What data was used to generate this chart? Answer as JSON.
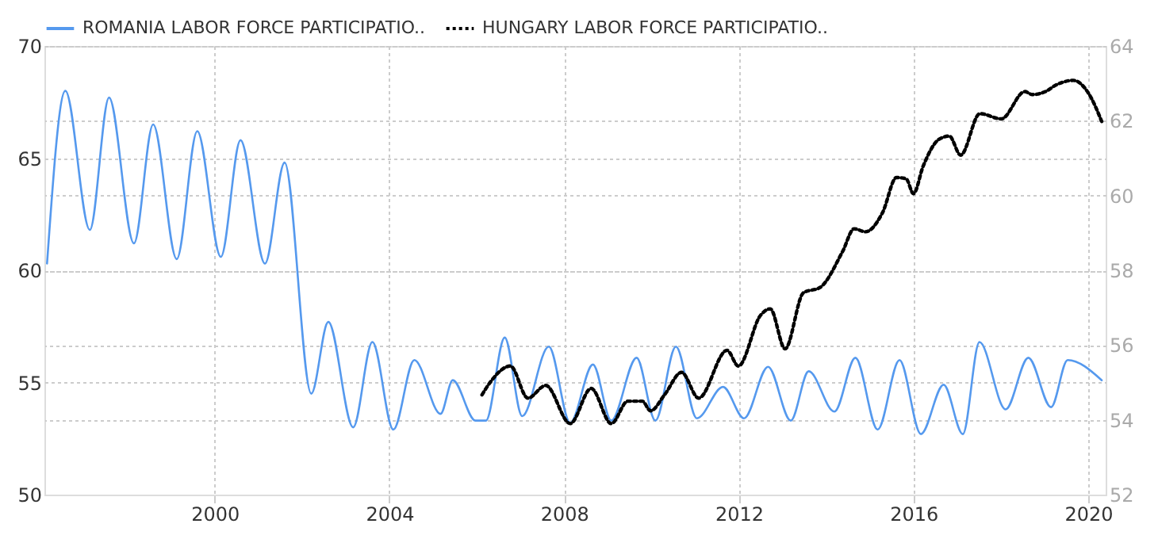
{
  "chart_data": {
    "type": "line",
    "legend": "top left",
    "grid": true,
    "xlim": [
      1996.1,
      2020.4
    ],
    "xticks": [
      2000,
      2004,
      2008,
      2012,
      2016,
      2020
    ],
    "ylim": [
      50,
      70
    ],
    "yticks": [
      50,
      55,
      60,
      65,
      70
    ],
    "y2lim": [
      52,
      64
    ],
    "y2ticks": [
      52,
      54,
      56,
      58,
      60,
      62,
      64
    ],
    "series": [
      {
        "name": "ROMANIA LABOR FORCE PARTICIPATIO..",
        "color": "#5599ee",
        "line_style": "solid",
        "x": [
          1996.16,
          1996.58,
          1997.14,
          1997.58,
          1998.15,
          1998.59,
          1999.13,
          1999.6,
          2000.14,
          2000.59,
          2001.15,
          2001.6,
          2002.21,
          2002.6,
          2003.17,
          2003.61,
          2004.09,
          2004.57,
          2005.17,
          2005.45,
          2005.97,
          2006.21,
          2006.64,
          2007.04,
          2007.65,
          2008.14,
          2008.66,
          2009.08,
          2009.66,
          2010.09,
          2010.56,
          2011.04,
          2011.64,
          2012.12,
          2012.67,
          2013.19,
          2013.6,
          2014.19,
          2014.67,
          2015.18,
          2015.68,
          2016.17,
          2016.69,
          2017.13,
          2017.51,
          2018.11,
          2018.63,
          2019.15,
          2019.53,
          2020.31
        ],
        "values": [
          60.3,
          68.0,
          61.8,
          67.7,
          61.2,
          66.5,
          60.5,
          66.2,
          60.6,
          65.8,
          60.3,
          64.8,
          54.5,
          57.7,
          53.0,
          56.8,
          52.9,
          56.0,
          53.6,
          55.1,
          53.3,
          53.3,
          57.0,
          53.5,
          56.6,
          53.2,
          55.8,
          53.3,
          56.1,
          53.3,
          56.6,
          53.4,
          54.8,
          53.4,
          55.7,
          53.3,
          55.5,
          53.7,
          56.1,
          52.9,
          56.0,
          52.7,
          54.9,
          52.7,
          56.8,
          53.8,
          56.1,
          53.9,
          56.0,
          55.1
        ]
      },
      {
        "name": "HUNGARY LABOR FORCE PARTICIPATIO..",
        "color": "#000000",
        "line_style": "dotted",
        "axis": "y2",
        "x": [
          2006.12,
          2006.33,
          2006.77,
          2007.17,
          2007.58,
          2008.14,
          2008.62,
          2009.08,
          2009.46,
          2009.79,
          2009.98,
          2010.3,
          2010.69,
          2011.08,
          2011.73,
          2011.99,
          2012.5,
          2012.72,
          2013.06,
          2013.48,
          2013.86,
          2014.38,
          2014.64,
          2014.9,
          2015.29,
          2015.61,
          2015.83,
          2016.0,
          2016.22,
          2016.58,
          2016.82,
          2017.08,
          2017.52,
          2018.01,
          2018.55,
          2018.72,
          2019.02,
          2019.27,
          2019.66,
          2020.01,
          2020.31
        ],
        "values": [
          54.67,
          55.04,
          55.44,
          54.58,
          54.92,
          53.9,
          54.84,
          53.9,
          54.5,
          54.5,
          54.24,
          54.67,
          55.27,
          54.58,
          55.86,
          55.44,
          56.8,
          56.97,
          55.9,
          57.4,
          57.54,
          58.51,
          59.11,
          59.03,
          59.54,
          60.48,
          60.45,
          60.05,
          60.78,
          61.5,
          61.59,
          61.08,
          62.19,
          62.05,
          62.78,
          62.7,
          62.78,
          62.96,
          63.08,
          62.73,
          61.98
        ]
      }
    ]
  }
}
